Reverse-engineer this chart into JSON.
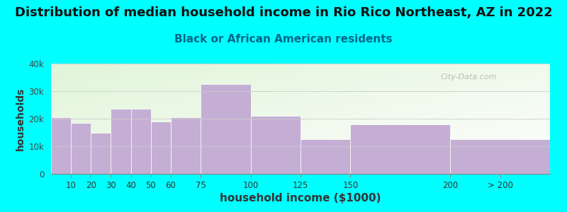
{
  "title": "Distribution of median household income in Rio Rico Northeast, AZ in 2022",
  "subtitle": "Black or African American residents",
  "xlabel": "household income ($1000)",
  "ylabel": "households",
  "background_color": "#00FFFF",
  "bar_color": "#c4aed4",
  "categories": [
    "10",
    "20",
    "30",
    "40",
    "50",
    "60",
    "75",
    "100",
    "125",
    "150",
    "200",
    "> 200"
  ],
  "values": [
    20500,
    18500,
    15000,
    23500,
    23500,
    19000,
    20500,
    32500,
    21000,
    12500,
    18000,
    12500
  ],
  "bin_edges": [
    0,
    10,
    20,
    30,
    40,
    50,
    60,
    75,
    100,
    125,
    150,
    200,
    250
  ],
  "ylim": [
    0,
    40000
  ],
  "yticks": [
    0,
    10000,
    20000,
    30000,
    40000
  ],
  "ytick_labels": [
    "0",
    "10k",
    "20k",
    "30k",
    "40k"
  ],
  "title_fontsize": 13,
  "subtitle_fontsize": 11,
  "xlabel_fontsize": 11,
  "ylabel_fontsize": 10,
  "watermark": "City-Data.com"
}
